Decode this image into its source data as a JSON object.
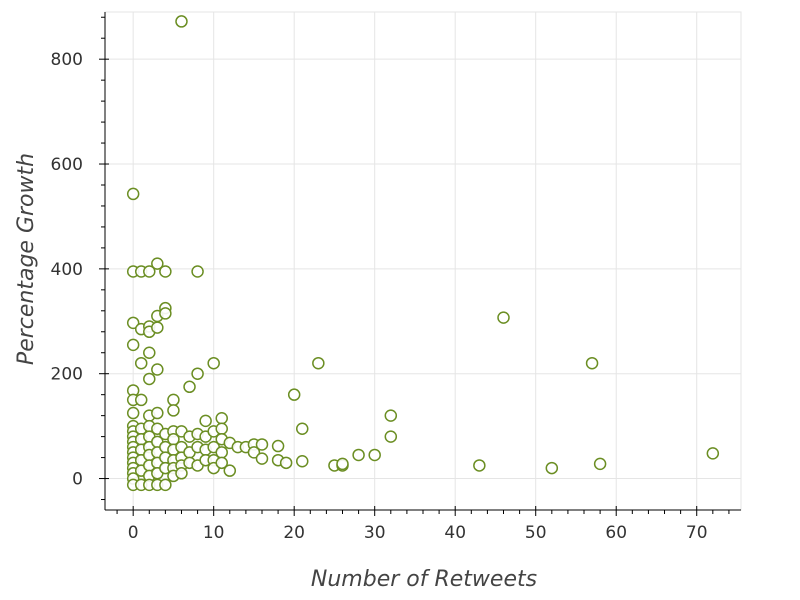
{
  "chart_data": {
    "type": "scatter",
    "title": "",
    "xlabel": "Number of Retweets",
    "ylabel": "Percentage Growth",
    "xlim": [
      -3.5,
      75.5
    ],
    "ylim": [
      -60,
      890
    ],
    "x_ticks": [
      0,
      10,
      20,
      30,
      40,
      50,
      60,
      70
    ],
    "y_ticks": [
      0,
      200,
      400,
      600,
      800
    ],
    "grid": true,
    "legend": "none",
    "marker_color": "#6b8e23",
    "series": [
      {
        "name": "",
        "points": [
          [
            6,
            872
          ],
          [
            0,
            543
          ],
          [
            0,
            395
          ],
          [
            1,
            395
          ],
          [
            2,
            395
          ],
          [
            3,
            410
          ],
          [
            4,
            395
          ],
          [
            8,
            395
          ],
          [
            0,
            297
          ],
          [
            1,
            285
          ],
          [
            2,
            290
          ],
          [
            2,
            280
          ],
          [
            3,
            288
          ],
          [
            3,
            310
          ],
          [
            4,
            325
          ],
          [
            4,
            315
          ],
          [
            46,
            307
          ],
          [
            0,
            255
          ],
          [
            2,
            240
          ],
          [
            1,
            220
          ],
          [
            2,
            190
          ],
          [
            3,
            208
          ],
          [
            7,
            175
          ],
          [
            8,
            200
          ],
          [
            10,
            220
          ],
          [
            23,
            220
          ],
          [
            57,
            220
          ],
          [
            20,
            160
          ],
          [
            0,
            168
          ],
          [
            0,
            150
          ],
          [
            1,
            150
          ],
          [
            5,
            150
          ],
          [
            5,
            130
          ],
          [
            0,
            125
          ],
          [
            2,
            120
          ],
          [
            3,
            125
          ],
          [
            9,
            110
          ],
          [
            11,
            115
          ],
          [
            32,
            120
          ],
          [
            21,
            95
          ],
          [
            0,
            100
          ],
          [
            0,
            90
          ],
          [
            0,
            80
          ],
          [
            0,
            70
          ],
          [
            0,
            60
          ],
          [
            0,
            50
          ],
          [
            0,
            40
          ],
          [
            0,
            30
          ],
          [
            0,
            20
          ],
          [
            0,
            10
          ],
          [
            0,
            0
          ],
          [
            0,
            -12
          ],
          [
            1,
            95
          ],
          [
            1,
            75
          ],
          [
            1,
            55
          ],
          [
            1,
            35
          ],
          [
            1,
            15
          ],
          [
            1,
            -12
          ],
          [
            2,
            100
          ],
          [
            2,
            80
          ],
          [
            2,
            60
          ],
          [
            2,
            45
          ],
          [
            2,
            25
          ],
          [
            2,
            5
          ],
          [
            2,
            -12
          ],
          [
            3,
            95
          ],
          [
            3,
            70
          ],
          [
            3,
            50
          ],
          [
            3,
            30
          ],
          [
            3,
            10
          ],
          [
            3,
            -12
          ],
          [
            4,
            85
          ],
          [
            4,
            60
          ],
          [
            4,
            40
          ],
          [
            4,
            20
          ],
          [
            4,
            -12
          ],
          [
            5,
            90
          ],
          [
            5,
            75
          ],
          [
            5,
            55
          ],
          [
            5,
            35
          ],
          [
            5,
            20
          ],
          [
            5,
            5
          ],
          [
            6,
            90
          ],
          [
            6,
            60
          ],
          [
            6,
            40
          ],
          [
            6,
            25
          ],
          [
            6,
            10
          ],
          [
            7,
            80
          ],
          [
            7,
            50
          ],
          [
            7,
            30
          ],
          [
            8,
            85
          ],
          [
            8,
            60
          ],
          [
            8,
            25
          ],
          [
            9,
            80
          ],
          [
            9,
            55
          ],
          [
            9,
            35
          ],
          [
            10,
            90
          ],
          [
            10,
            60
          ],
          [
            10,
            35
          ],
          [
            10,
            20
          ],
          [
            11,
            95
          ],
          [
            11,
            75
          ],
          [
            11,
            50
          ],
          [
            11,
            30
          ],
          [
            12,
            68
          ],
          [
            12,
            15
          ],
          [
            13,
            60
          ],
          [
            14,
            60
          ],
          [
            15,
            65
          ],
          [
            15,
            50
          ],
          [
            16,
            65
          ],
          [
            16,
            38
          ],
          [
            18,
            62
          ],
          [
            18,
            35
          ],
          [
            19,
            30
          ],
          [
            21,
            33
          ],
          [
            25,
            25
          ],
          [
            26,
            25
          ],
          [
            26,
            28
          ],
          [
            28,
            45
          ],
          [
            30,
            45
          ],
          [
            32,
            80
          ],
          [
            43,
            25
          ],
          [
            52,
            20
          ],
          [
            58,
            28
          ],
          [
            72,
            48
          ]
        ]
      }
    ]
  }
}
